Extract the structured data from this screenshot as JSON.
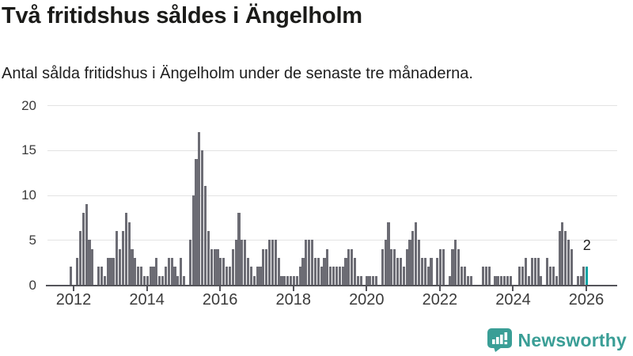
{
  "header": {
    "title": "Två fritidshus såldes i Ängelholm",
    "subtitle": "Antal sålda fritidshus i Ängelholm under de senaste tre månaderna."
  },
  "chart_data": {
    "type": "bar",
    "title": "Två fritidshus såldes i Ängelholm",
    "xlabel": "",
    "ylabel": "",
    "start_month": "2011-12",
    "end_month": "2026-01",
    "y_ticks": [
      0,
      5,
      10,
      15,
      20
    ],
    "ylim": [
      0,
      20
    ],
    "x_tick_years": [
      2012,
      2014,
      2016,
      2018,
      2020,
      2022,
      2024,
      2026
    ],
    "grid": true,
    "bar_color": "#6c6c74",
    "highlight_color": "#00a3a3",
    "last_value_label": "2",
    "values": [
      2,
      0,
      3,
      6,
      8,
      9,
      5,
      4,
      0,
      2,
      2,
      1,
      3,
      3,
      3,
      6,
      4,
      6,
      8,
      7,
      4,
      3,
      2,
      2,
      1,
      1,
      2,
      2,
      3,
      1,
      1,
      2,
      3,
      3,
      2,
      1,
      3,
      1,
      0,
      5,
      10,
      14,
      17,
      15,
      11,
      6,
      4,
      4,
      4,
      3,
      3,
      2,
      2,
      4,
      5,
      8,
      5,
      5,
      3,
      2,
      1,
      2,
      2,
      4,
      4,
      5,
      5,
      5,
      3,
      1,
      1,
      1,
      1,
      1,
      1,
      2,
      3,
      5,
      5,
      5,
      3,
      3,
      2,
      3,
      4,
      2,
      2,
      2,
      2,
      2,
      3,
      4,
      4,
      3,
      1,
      1,
      0,
      1,
      1,
      1,
      1,
      0,
      4,
      5,
      7,
      4,
      4,
      3,
      3,
      2,
      4,
      5,
      6,
      7,
      5,
      3,
      3,
      2,
      3,
      0,
      3,
      4,
      4,
      0,
      1,
      4,
      5,
      4,
      2,
      2,
      1,
      1,
      0,
      0,
      0,
      2,
      2,
      2,
      0,
      1,
      1,
      1,
      1,
      1,
      1,
      0,
      0,
      2,
      2,
      3,
      1,
      3,
      3,
      3,
      1,
      0,
      3,
      2,
      2,
      1,
      6,
      7,
      6,
      5,
      4,
      0,
      1,
      1,
      2,
      2
    ]
  },
  "footer": {
    "brand": "Newsworthy",
    "brand_color": "#3a9e96",
    "logo_icon": "bar-chart-speech-bubble"
  }
}
